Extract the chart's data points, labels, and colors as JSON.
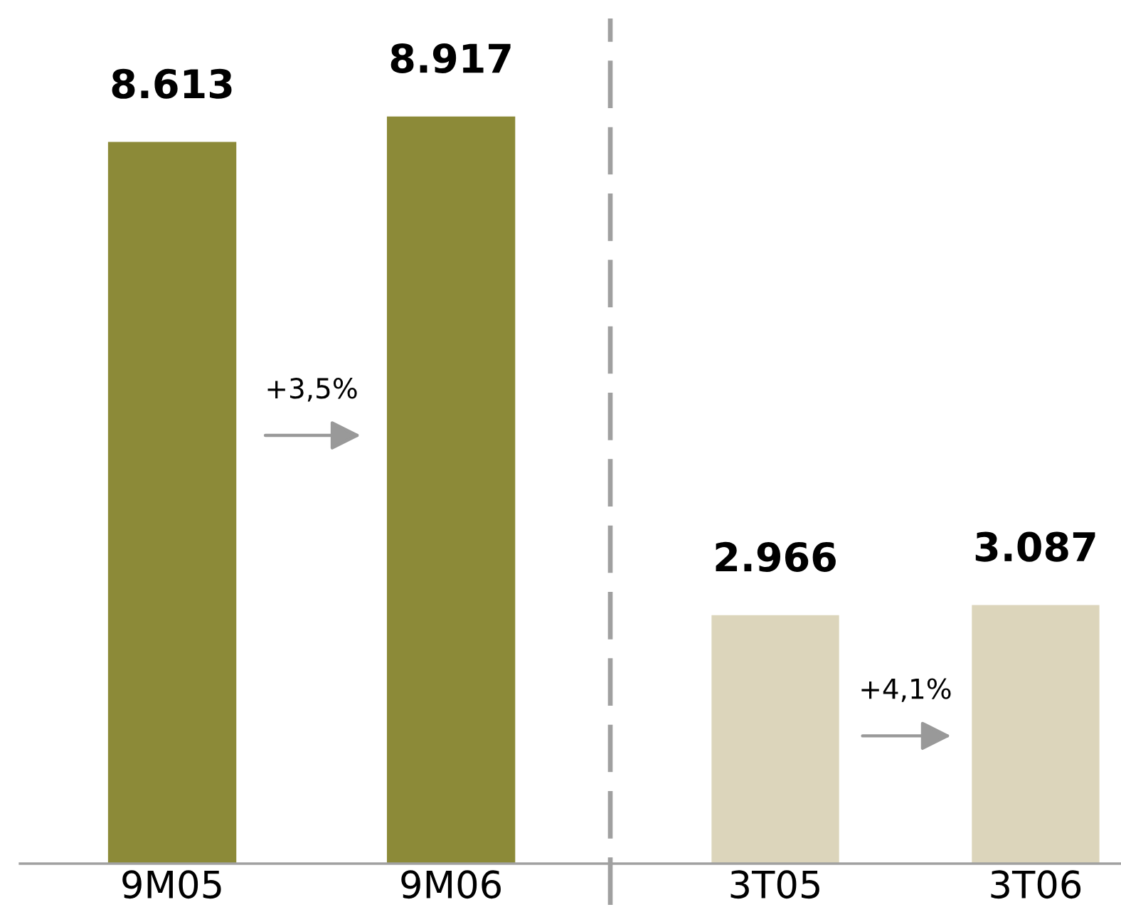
{
  "chart_data": [
    {
      "type": "bar",
      "categories": [
        "9M05",
        "9M06"
      ],
      "values": [
        8613,
        8917
      ],
      "colors": [
        "#8c8a38",
        "#8c8a38"
      ],
      "value_labels": [
        "8.613",
        "8.917"
      ],
      "annotations": [
        "+3,5%"
      ],
      "tick_labels": "x"
    },
    {
      "type": "bar",
      "categories": [
        "3T05",
        "3T06"
      ],
      "values": [
        2966,
        3087
      ],
      "colors": [
        "#dcd5bb",
        "#dcd5bb"
      ],
      "value_labels": [
        "2.966",
        "3.087"
      ],
      "annotations": [
        "+4,1%"
      ],
      "tick_labels": "x"
    }
  ]
}
